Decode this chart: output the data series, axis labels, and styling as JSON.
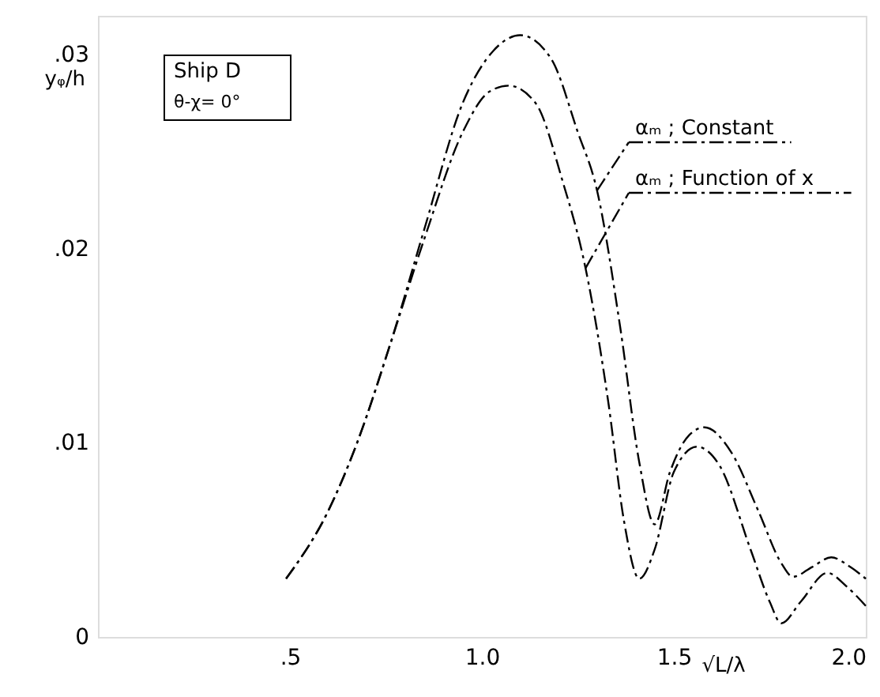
{
  "chart_data": {
    "type": "line",
    "xlabel": "√L/λ",
    "ylabel": "yᵩ/h",
    "annotations": [
      "Ship D",
      "θ-χ= 0°"
    ],
    "xlim": [
      0,
      2.0
    ],
    "ylim": [
      0,
      0.032
    ],
    "xticks": [
      {
        "value": 0.5,
        "label": ".5"
      },
      {
        "value": 1.0,
        "label": "1.0"
      },
      {
        "value": 1.5,
        "label": "1.5"
      },
      {
        "value": 2.0,
        "label": "2.0"
      }
    ],
    "yticks": [
      {
        "value": 0,
        "label": "0"
      },
      {
        "value": 0.01,
        "label": ".01"
      },
      {
        "value": 0.02,
        "label": ".02"
      },
      {
        "value": 0.03,
        "label": ".03"
      }
    ],
    "grid": false,
    "legend": "top right",
    "marker": "none",
    "line_style": "dashed",
    "series": [
      {
        "name": "αₘ ; Constant",
        "color": "#000000",
        "x": [
          0.49,
          0.6,
          0.675,
          0.76,
          0.85,
          0.95,
          1.03,
          1.1,
          1.18,
          1.25,
          1.3,
          1.36,
          1.41,
          1.45,
          1.49,
          1.54,
          1.58,
          1.65,
          1.72,
          1.78,
          1.81,
          1.86,
          1.91,
          1.96,
          2.0
        ],
        "values": [
          0.003,
          0.0065,
          0.01,
          0.015,
          0.021,
          0.0275,
          0.0302,
          0.031,
          0.0298,
          0.026,
          0.023,
          0.016,
          0.009,
          0.0058,
          0.0085,
          0.0104,
          0.0108,
          0.0095,
          0.0065,
          0.0038,
          0.0031,
          0.0036,
          0.0041,
          0.0036,
          0.003
        ]
      },
      {
        "name": "αₘ ; Function of x",
        "color": "#000000",
        "x": [
          0.49,
          0.6,
          0.675,
          0.76,
          0.85,
          0.95,
          1.02,
          1.07,
          1.14,
          1.21,
          1.27,
          1.33,
          1.37,
          1.41,
          1.45,
          1.5,
          1.56,
          1.62,
          1.7,
          1.75,
          1.78,
          1.83,
          1.9,
          1.95,
          2.0
        ],
        "values": [
          0.003,
          0.0065,
          0.01,
          0.015,
          0.0205,
          0.026,
          0.0281,
          0.0284,
          0.0275,
          0.0235,
          0.019,
          0.012,
          0.006,
          0.003,
          0.0045,
          0.0085,
          0.0098,
          0.0088,
          0.0045,
          0.0018,
          0.0007,
          0.0018,
          0.0033,
          0.0026,
          0.0016
        ]
      }
    ]
  }
}
